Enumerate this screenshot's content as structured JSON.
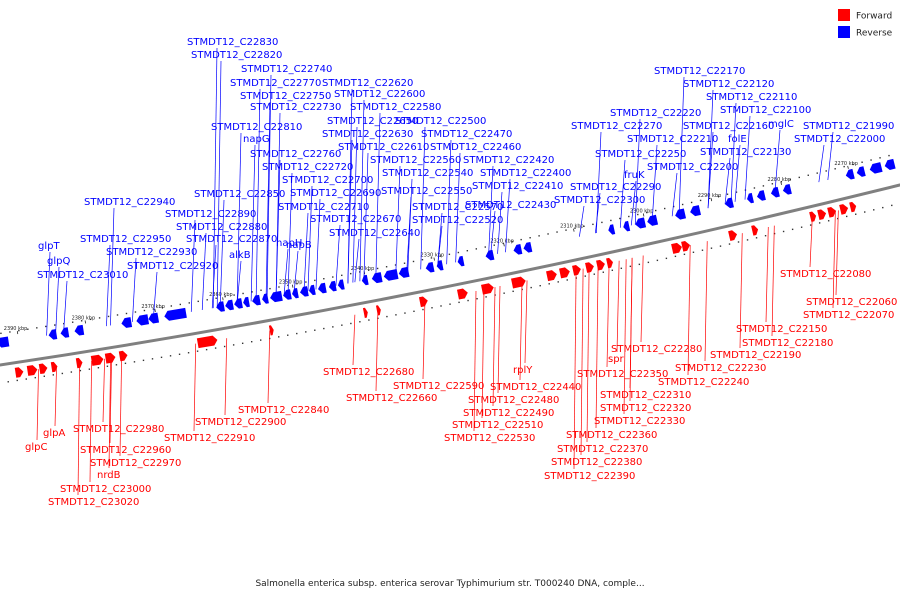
{
  "legend": {
    "forward_label": "Forward",
    "reverse_label": "Reverse",
    "forward_color": "#ff0000",
    "reverse_color": "#0000ff"
  },
  "caption": "Salmonella enterica subsp. enterica serovar Typhimurium str. T000240 DNA, comple...",
  "backbone_color": "#808080",
  "ticks": [
    {
      "label": "2390 kbp"
    },
    {
      "label": "2380 kbp"
    },
    {
      "label": "2370 kbp"
    },
    {
      "label": "2360 kbp"
    },
    {
      "label": "2350 kbp"
    },
    {
      "label": "2340 kbp"
    },
    {
      "label": "2330 kbp"
    },
    {
      "label": "2320 kbp"
    },
    {
      "label": "2310 kbp"
    },
    {
      "label": "2300 kbp"
    },
    {
      "label": "2290 kbp"
    },
    {
      "label": "2280 kbp"
    },
    {
      "label": "2270 kbp"
    }
  ],
  "reverse_labels": [
    "STMDT12_C22830",
    "STMDT12_C22820",
    "STMDT12_C22740",
    "STMDT12_C22770",
    "STMDT12_C22620",
    "STMDT12_C22750",
    "STMDT12_C22600",
    "STMDT12_C22730",
    "STMDT12_C22580",
    "STMDT12_C22810",
    "STMDT12_C22650",
    "STMDT12_C22500",
    "napG",
    "STMDT12_C22630",
    "STMDT12_C22470",
    "STMDT12_C22610",
    "STMDT12_C22460",
    "STMDT12_C22760",
    "STMDT12_C22560",
    "STMDT12_C22420",
    "STMDT12_C22720",
    "STMDT12_C22540",
    "STMDT12_C22400",
    "STMDT12_C22700",
    "STMDT12_C22410",
    "STMDT12_C22690",
    "STMDT12_C22550",
    "STMDT12_C22850",
    "STMDT12_C22430",
    "STMDT12_C22940",
    "STMDT12_C22710",
    "STMDT12_C22570",
    "STMDT12_C22890",
    "STMDT12_C22670",
    "STMDT12_C22520",
    "STMDT12_C22880",
    "STMDT12_C22640",
    "STMDT12_C22870",
    "napH",
    "STMDT12_C22950",
    "napB",
    "glpT",
    "STMDT12_C22930",
    "alkB",
    "glpQ",
    "STMDT12_C22920",
    "STMDT12_C23010",
    "STMDT12_C22170",
    "STMDT12_C22120",
    "STMDT12_C22110",
    "STMDT12_C22100",
    "STMDT12_C22220",
    "STMDT12_C22270",
    "STMDT12_C22160",
    "mglC",
    "STMDT12_C21990",
    "STMDT12_C22210",
    "folE",
    "STMDT12_C22000",
    "STMDT12_C22250",
    "STMDT12_C22130",
    "fruK",
    "STMDT12_C22200",
    "STMDT12_C22290",
    "STMDT12_C22300"
  ],
  "forward_labels": [
    "STMDT12_C22080",
    "STMDT12_C22060",
    "STMDT12_C22070",
    "STMDT12_C22150",
    "STMDT12_C22180",
    "STMDT12_C22280",
    "STMDT12_C22190",
    "spr",
    "STMDT12_C22230",
    "STMDT12_C22680",
    "STMDT12_C22350",
    "STMDT12_C22240",
    "STMDT12_C22590",
    "rplY",
    "STMDT12_C22440",
    "STMDT12_C22660",
    "STMDT12_C22310",
    "STMDT12_C22480",
    "STMDT12_C22840",
    "STMDT12_C22320",
    "STMDT12_C22490",
    "STMDT12_C22900",
    "STMDT12_C22330",
    "STMDT12_C22510",
    "glpA",
    "STMDT12_C22980",
    "STMDT12_C22910",
    "STMDT12_C22360",
    "STMDT12_C22530",
    "glpC",
    "STMDT12_C22960",
    "STMDT12_C22370",
    "STMDT12_C22970",
    "STMDT12_C22380",
    "nrdB",
    "STMDT12_C22390",
    "STMDT12_C23000",
    "STMDT12_C23020"
  ]
}
